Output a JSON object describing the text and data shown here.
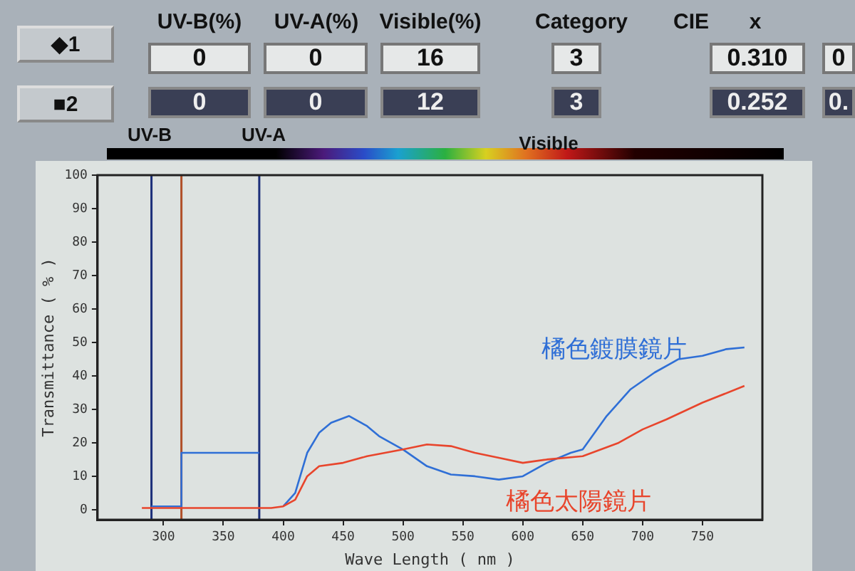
{
  "chart_data": {
    "type": "line",
    "xlabel": "Wave Length ( nm )",
    "ylabel": "Transmittance ( % )",
    "xlim": [
      245,
      800
    ],
    "xticks": [
      300,
      350,
      400,
      450,
      500,
      550,
      600,
      650,
      700,
      750
    ],
    "ylim": [
      -3,
      100
    ],
    "yticks": [
      0,
      10,
      20,
      30,
      40,
      50,
      60,
      70,
      80,
      90,
      100
    ],
    "grid": false,
    "legend": false,
    "marker": "none",
    "line_style": "solid",
    "series": [
      {
        "name": "橘色太陽鏡片",
        "color": "#e8452c",
        "x": [
          282,
          300,
          350,
          390,
          400,
          410,
          420,
          430,
          450,
          470,
          500,
          520,
          540,
          560,
          580,
          600,
          620,
          650,
          680,
          700,
          720,
          750,
          785
        ],
        "values": [
          0.5,
          0.5,
          0.5,
          0.5,
          1,
          3,
          10,
          13,
          14,
          16,
          18,
          19.5,
          19,
          17,
          15.5,
          14,
          15,
          16,
          20,
          24,
          27,
          32,
          37
        ]
      },
      {
        "name": "橘色鍍膜鏡片",
        "color": "#2f6fd6",
        "x": [
          400,
          410,
          420,
          430,
          440,
          455,
          470,
          480,
          500,
          520,
          540,
          560,
          580,
          600,
          620,
          640,
          650,
          670,
          690,
          710,
          730,
          750,
          770,
          785
        ],
        "values": [
          1,
          5,
          17,
          23,
          26,
          28,
          25,
          22,
          18,
          13,
          10.5,
          10,
          9,
          10,
          14,
          17,
          18,
          28,
          36,
          41,
          45,
          46,
          48,
          48.5
        ]
      },
      {
        "color": "#2f6fd6",
        "type": "step",
        "x": [
          290,
          315,
          380
        ],
        "values": [
          1,
          17,
          17
        ]
      }
    ],
    "ref_lines": [
      {
        "axis": "x",
        "value": 290,
        "color": "#1c2f7a"
      },
      {
        "axis": "x",
        "value": 315,
        "color": "#b0502a"
      },
      {
        "axis": "x",
        "value": 380,
        "color": "#1c2f7a"
      }
    ],
    "annotations": [
      "UV-B(%)",
      "UV-A(%)",
      "Visible(%)",
      "Category",
      "CIE",
      "x",
      "◆1",
      "■2",
      "0",
      "0",
      "16",
      "3",
      "0.310",
      "0",
      "0",
      "0",
      "12",
      "3",
      "0.252",
      "0.",
      "UV-B",
      "UV-A",
      "Visible"
    ]
  }
}
